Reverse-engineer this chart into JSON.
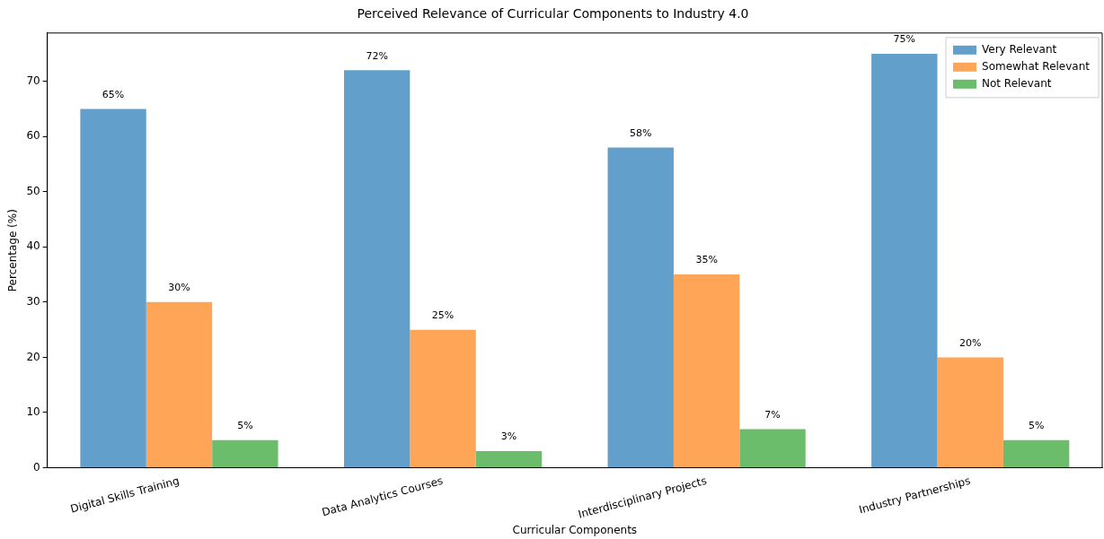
{
  "chart_data": {
    "type": "bar",
    "title": "Perceived Relevance of Curricular Components to Industry 4.0",
    "xlabel": "Curricular Components",
    "ylabel": "Percentage (%)",
    "categories": [
      "Digital Skills Training",
      "Data Analytics Courses",
      "Interdisciplinary Projects",
      "Industry Partnerships"
    ],
    "series": [
      {
        "name": "Very Relevant",
        "color": "#62a0cb",
        "values": [
          65,
          72,
          58,
          75
        ],
        "value_labels": [
          "65%",
          "72%",
          "58%",
          "75%"
        ]
      },
      {
        "name": "Somewhat Relevant",
        "color": "#ffa557",
        "values": [
          30,
          25,
          35,
          20
        ],
        "value_labels": [
          "30%",
          "25%",
          "35%",
          "20%"
        ]
      },
      {
        "name": "Not Relevant",
        "color": "#6bbc6b",
        "values": [
          5,
          3,
          7,
          5
        ],
        "value_labels": [
          "5%",
          "3%",
          "7%",
          "5%"
        ]
      }
    ],
    "ylim": [
      0,
      78.75
    ],
    "yticks": [
      0,
      10,
      20,
      30,
      40,
      50,
      60,
      70
    ],
    "grid": false,
    "legend": "top right"
  }
}
